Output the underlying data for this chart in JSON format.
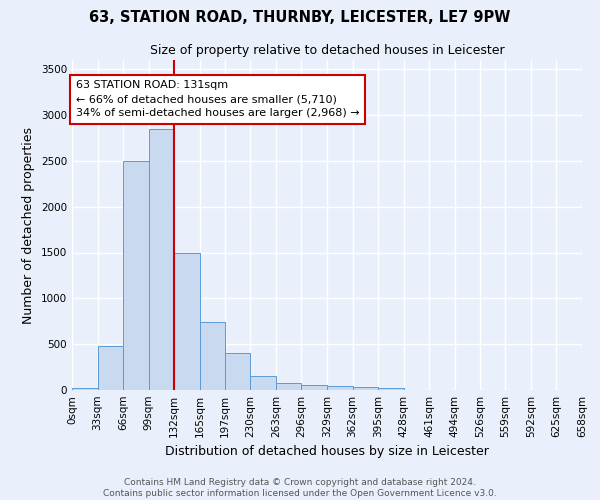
{
  "title": "63, STATION ROAD, THURNBY, LEICESTER, LE7 9PW",
  "subtitle": "Size of property relative to detached houses in Leicester",
  "xlabel": "Distribution of detached houses by size in Leicester",
  "ylabel": "Number of detached properties",
  "bin_edges": [
    0,
    33,
    66,
    99,
    132,
    165,
    197,
    230,
    263,
    296,
    329,
    362,
    395,
    428,
    461,
    494,
    526,
    559,
    592,
    625,
    658
  ],
  "bin_labels": [
    "0sqm",
    "33sqm",
    "66sqm",
    "99sqm",
    "132sqm",
    "165sqm",
    "197sqm",
    "230sqm",
    "263sqm",
    "296sqm",
    "329sqm",
    "362sqm",
    "395sqm",
    "428sqm",
    "461sqm",
    "494sqm",
    "526sqm",
    "559sqm",
    "592sqm",
    "625sqm",
    "658sqm"
  ],
  "counts": [
    20,
    480,
    2500,
    2850,
    1500,
    740,
    400,
    150,
    80,
    50,
    40,
    30,
    20,
    5,
    5,
    3,
    3,
    2,
    2,
    5
  ],
  "bar_color": "#c9d9ef",
  "bar_edge_color": "#5b9bd5",
  "property_value": 131,
  "red_line_color": "#cc0000",
  "annotation_text": "63 STATION ROAD: 131sqm\n← 66% of detached houses are smaller (5,710)\n34% of semi-detached houses are larger (2,968) →",
  "annotation_box_color": "white",
  "annotation_box_edge": "#cc0000",
  "ylim": [
    0,
    3600
  ],
  "yticks": [
    0,
    500,
    1000,
    1500,
    2000,
    2500,
    3000,
    3500
  ],
  "footer_text": "Contains HM Land Registry data © Crown copyright and database right 2024.\nContains public sector information licensed under the Open Government Licence v3.0.",
  "background_color": "#eaf0fb",
  "grid_color": "white",
  "title_fontsize": 10.5,
  "subtitle_fontsize": 9,
  "axis_label_fontsize": 9,
  "tick_fontsize": 7.5,
  "annotation_fontsize": 8,
  "footer_fontsize": 6.5
}
